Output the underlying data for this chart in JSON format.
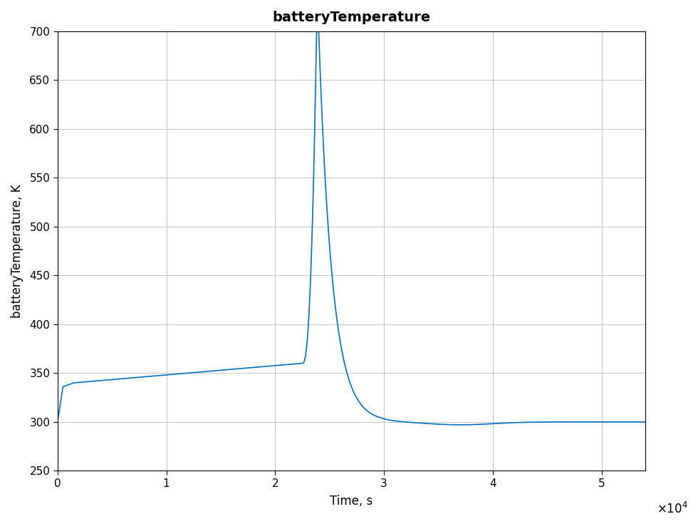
{
  "title": "batteryTemperature",
  "xlabel": "Time, s",
  "ylabel": "batteryTemperature, K",
  "line_color": "#0072BD",
  "xlim": [
    0,
    54000
  ],
  "ylim": [
    250,
    700
  ],
  "xticks": [
    0,
    10000,
    20000,
    30000,
    40000,
    50000
  ],
  "yticks": [
    250,
    300,
    350,
    400,
    450,
    500,
    550,
    600,
    650,
    700
  ],
  "background_color": "#ffffff",
  "grid_color": "#c8c8c8",
  "title_fontsize": 14,
  "label_fontsize": 12,
  "tick_fontsize": 11
}
